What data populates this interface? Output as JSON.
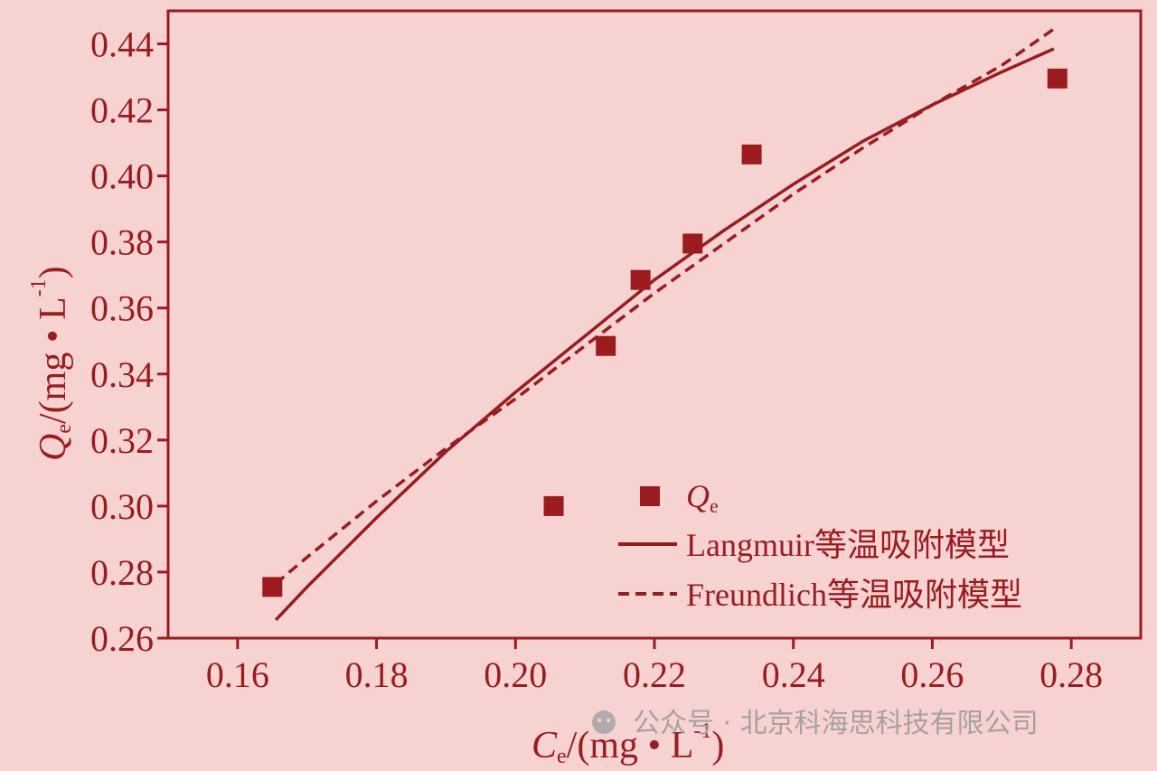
{
  "chart_data": {
    "type": "scatter",
    "colors": {
      "accent": "#9b1b1f",
      "background": "#f6d3d1",
      "watermark": "#a8a0a0"
    },
    "x_axis": {
      "label_main": "C",
      "label_sub": "e",
      "label_unit": "/(mg • L",
      "label_sup": "-1",
      "label_close": ")",
      "range": [
        0.15,
        0.29
      ],
      "ticks": [
        0.16,
        0.18,
        0.2,
        0.22,
        0.24,
        0.26,
        0.28
      ],
      "tick_labels": [
        "0.16",
        "0.18",
        "0.20",
        "0.22",
        "0.24",
        "0.26",
        "0.28"
      ]
    },
    "y_axis": {
      "label_main": "Q",
      "label_sub": "e",
      "label_unit": "/(mg • L",
      "label_sup": "-1",
      "label_close": ")",
      "range": [
        0.26,
        0.45
      ],
      "ticks": [
        0.26,
        0.28,
        0.3,
        0.32,
        0.34,
        0.36,
        0.38,
        0.4,
        0.42,
        0.44
      ],
      "tick_labels": [
        "0.26",
        "0.28",
        "0.30",
        "0.32",
        "0.34",
        "0.36",
        "0.38",
        "0.40",
        "0.42",
        "0.44"
      ]
    },
    "grid": false,
    "legend_position": "bottom-right",
    "series": [
      {
        "name": "Q",
        "name_sub": "e",
        "kind": "scatter",
        "x": [
          0.165,
          0.2055,
          0.213,
          0.218,
          0.2255,
          0.234,
          0.278
        ],
        "y": [
          0.2755,
          0.3,
          0.3485,
          0.3685,
          0.3795,
          0.4065,
          0.4295
        ]
      },
      {
        "name": "Langmuir等温吸附模型",
        "kind": "line",
        "style": "solid",
        "x": [
          0.1655,
          0.17,
          0.18,
          0.19,
          0.2,
          0.21,
          0.22,
          0.23,
          0.24,
          0.25,
          0.26,
          0.27,
          0.2775
        ],
        "y": [
          0.2655,
          0.2755,
          0.2965,
          0.3165,
          0.3345,
          0.3515,
          0.3685,
          0.3835,
          0.3975,
          0.4105,
          0.4215,
          0.4315,
          0.4385
        ]
      },
      {
        "name": "Freundlich等温吸附模型",
        "kind": "line",
        "style": "dashed",
        "x": [
          0.1655,
          0.17,
          0.18,
          0.19,
          0.2,
          0.21,
          0.22,
          0.23,
          0.24,
          0.25,
          0.26,
          0.27,
          0.2775
        ],
        "y": [
          0.2765,
          0.2845,
          0.3015,
          0.3175,
          0.3325,
          0.3485,
          0.3645,
          0.3795,
          0.3945,
          0.4085,
          0.4215,
          0.4335,
          0.4445
        ]
      }
    ]
  },
  "watermark": {
    "text": "公众号 · 北京科海思科技有限公司"
  }
}
